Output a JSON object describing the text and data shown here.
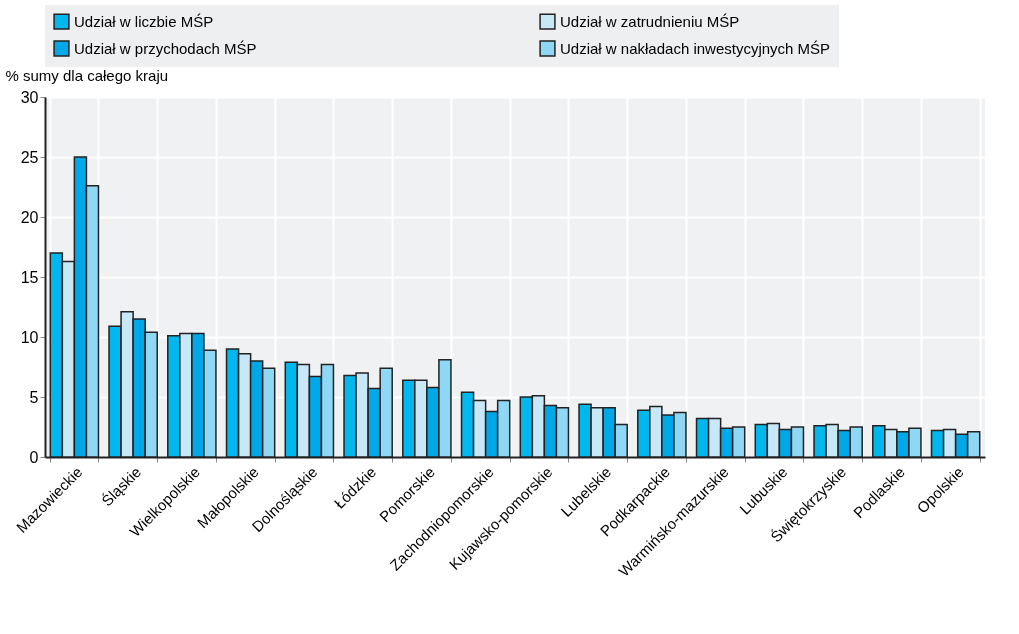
{
  "chart_data": {
    "type": "bar",
    "ylabel": "% sumy dla całego kraju",
    "categories": [
      "Mazowieckie",
      "Śląskie",
      "Wielkopolskie",
      "Małopolskie",
      "Dolnośląskie",
      "Łódzkie",
      "Pomorskie",
      "Zachodniopomorskie",
      "Kujawsko-pomorskie",
      "Lubelskie",
      "Podkarpackie",
      "Warmińsko-mazurskie",
      "Lubuskie",
      "Świętokrzyskie",
      "Podlaskie",
      "Opolskie"
    ],
    "series": [
      {
        "name": "Udział w liczbie MŚP",
        "color": "#00b8ee",
        "values": [
          17.0,
          10.9,
          10.1,
          9.0,
          7.9,
          6.8,
          6.4,
          5.4,
          5.0,
          4.4,
          3.9,
          3.2,
          2.7,
          2.6,
          2.6,
          2.2
        ]
      },
      {
        "name": "Udział w zatrudnieniu MŚP",
        "color": "#c8e8f8",
        "values": [
          16.3,
          12.1,
          10.3,
          8.6,
          7.7,
          7.0,
          6.4,
          4.7,
          5.1,
          4.1,
          4.2,
          3.2,
          2.8,
          2.7,
          2.3,
          2.3
        ]
      },
      {
        "name": "Udział w przychodach MŚP",
        "color": "#00a8e8",
        "values": [
          25.0,
          11.5,
          10.3,
          8.0,
          6.7,
          5.7,
          5.8,
          3.8,
          4.3,
          4.1,
          3.5,
          2.4,
          2.3,
          2.2,
          2.1,
          1.9
        ]
      },
      {
        "name": "Udział w nakładach inwestycyjnych MŚP",
        "color": "#8ed8f6",
        "values": [
          22.6,
          10.4,
          8.9,
          7.4,
          7.7,
          7.4,
          8.1,
          4.7,
          4.1,
          2.7,
          3.7,
          2.5,
          2.5,
          2.5,
          2.4,
          2.1
        ]
      }
    ],
    "ylim": [
      0,
      30
    ],
    "yticks": [
      0,
      5,
      10,
      15,
      20,
      25,
      30
    ],
    "grid": true,
    "legend": "top"
  }
}
